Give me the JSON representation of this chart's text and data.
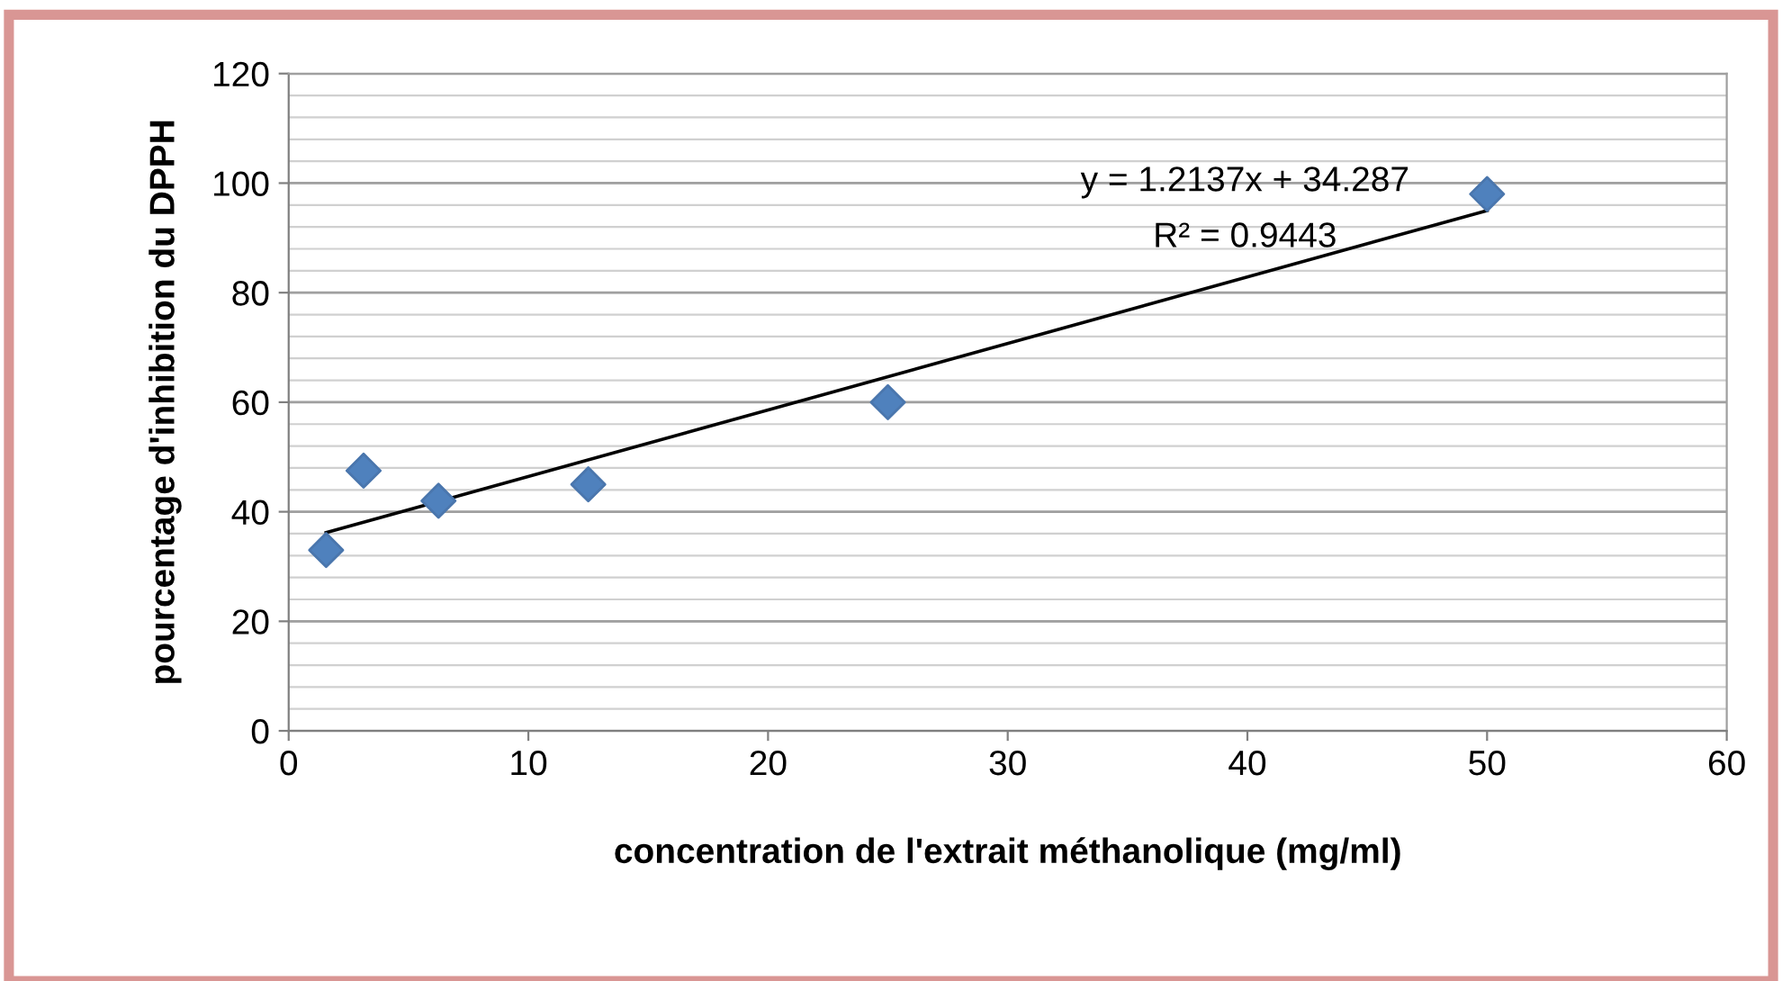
{
  "chart_data": {
    "type": "scatter",
    "xlabel": "concentration de l'extrait méthanolique (mg/ml)",
    "ylabel": "pourcentage d'inhibition du DPPH",
    "series": [
      {
        "color": "#4f81bd",
        "marker": "diamond",
        "x": [
          1.5625,
          3.125,
          6.25,
          12.5,
          25,
          50
        ],
        "values": [
          33,
          47.5,
          42,
          45,
          60,
          98
        ]
      },
      {
        "type": "line",
        "color": "#000000",
        "marker": "none",
        "line_style": "solid",
        "x": [
          1.5625,
          50
        ],
        "values": [
          36.2,
          95.0
        ]
      }
    ],
    "annotations": [
      "y = 1.2137x + 34.287",
      "R² = 0.9443"
    ],
    "xlim": [
      0,
      60
    ],
    "xticks": [
      0,
      10,
      20,
      30,
      40,
      50,
      60
    ],
    "ylim": [
      0,
      120
    ],
    "yticks": [
      0,
      20,
      40,
      60,
      80,
      100,
      120
    ],
    "grid": "y",
    "legend": false
  }
}
